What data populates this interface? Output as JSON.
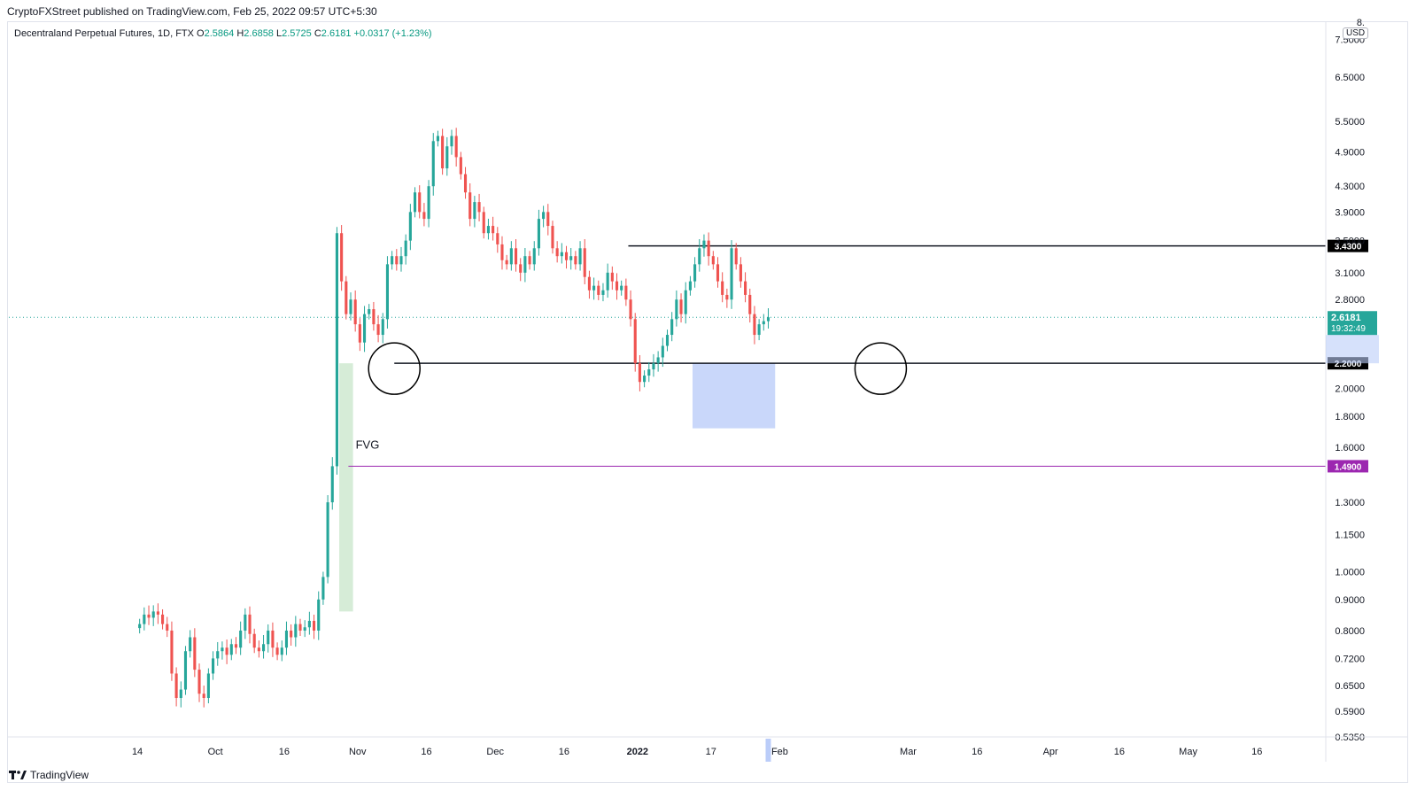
{
  "header": {
    "publisher_line": "CryptoFXStreet published on TradingView.com, Feb 25, 2022 09:57 UTC+5:30"
  },
  "legend": {
    "symbol": "Decentraland Perpetual Futures, 1D, FTX",
    "o_label": "O",
    "o_value": "2.5864",
    "h_label": "H",
    "h_value": "2.6858",
    "l_label": "L",
    "l_value": "2.5725",
    "c_label": "C",
    "c_value": "2.6181",
    "change": "+0.0317 (+1.23%)"
  },
  "currency": "USD",
  "footer": {
    "brand": "TradingView"
  },
  "colors": {
    "up": "#26a69a",
    "down": "#ef5350",
    "fvg": "#c8e6c9",
    "blue_zone": "#bbcdf9",
    "level_line": "#131722",
    "fvg_line": "#9c27b0",
    "price_label": "#26a69a"
  },
  "chart_data": {
    "type": "candlestick",
    "y_scale": "log",
    "ylim": [
      0.535,
      8.0
    ],
    "y_ticks": [
      "8.",
      "7.5000",
      "6.5000",
      "5.5000",
      "4.9000",
      "4.3000",
      "3.9000",
      "3.5000",
      "3.1000",
      "2.8000",
      "2.0000",
      "1.8000",
      "1.6000",
      "1.3000",
      "1.1500",
      "1.0000",
      "0.9000",
      "0.8000",
      "0.7200",
      "0.6500",
      "0.5900",
      "0.5350"
    ],
    "y_tick_values": [
      8.0,
      7.5,
      6.5,
      5.5,
      4.9,
      4.3,
      3.9,
      3.5,
      3.1,
      2.8,
      2.0,
      1.8,
      1.6,
      1.3,
      1.15,
      1.0,
      0.9,
      0.8,
      0.72,
      0.65,
      0.59,
      0.535
    ],
    "x_ticks": [
      {
        "label": "14",
        "date": "2021-09-14"
      },
      {
        "label": "Oct",
        "date": "2021-10-01"
      },
      {
        "label": "16",
        "date": "2021-10-16"
      },
      {
        "label": "Nov",
        "date": "2021-11-01"
      },
      {
        "label": "16",
        "date": "2021-11-16"
      },
      {
        "label": "Dec",
        "date": "2021-12-01"
      },
      {
        "label": "16",
        "date": "2021-12-16"
      },
      {
        "label": "2022",
        "date": "2022-01-01"
      },
      {
        "label": "17",
        "date": "2022-01-17"
      },
      {
        "label": "Feb",
        "date": "2022-02-01"
      },
      {
        "label": "Mar",
        "date": "2022-03-01"
      },
      {
        "label": "16",
        "date": "2022-03-16"
      },
      {
        "label": "Apr",
        "date": "2022-04-01"
      },
      {
        "label": "16",
        "date": "2022-04-16"
      },
      {
        "label": "May",
        "date": "2022-05-01"
      },
      {
        "label": "16",
        "date": "2022-05-16"
      }
    ],
    "x_range": [
      "2021-08-17",
      "2022-05-31"
    ],
    "first_date": "2021-09-14",
    "closes": [
      0.82,
      0.85,
      0.84,
      0.86,
      0.85,
      0.82,
      0.8,
      0.68,
      0.62,
      0.64,
      0.74,
      0.78,
      0.69,
      0.63,
      0.62,
      0.68,
      0.72,
      0.74,
      0.75,
      0.73,
      0.76,
      0.75,
      0.8,
      0.85,
      0.79,
      0.75,
      0.74,
      0.76,
      0.8,
      0.75,
      0.73,
      0.75,
      0.8,
      0.78,
      0.82,
      0.8,
      0.81,
      0.83,
      0.8,
      0.9,
      0.98,
      1.3,
      1.49,
      3.6,
      3.0,
      2.65,
      2.8,
      2.55,
      2.38,
      2.65,
      2.7,
      2.55,
      2.45,
      2.6,
      3.2,
      3.3,
      3.2,
      3.3,
      3.5,
      3.9,
      4.2,
      3.9,
      3.8,
      4.3,
      5.1,
      5.2,
      4.6,
      5.0,
      5.2,
      4.8,
      4.5,
      4.2,
      3.8,
      4.05,
      3.9,
      3.6,
      3.7,
      3.6,
      3.45,
      3.25,
      3.2,
      3.4,
      3.2,
      3.1,
      3.3,
      3.2,
      3.4,
      3.8,
      3.9,
      3.7,
      3.4,
      3.3,
      3.35,
      3.25,
      3.3,
      3.2,
      3.4,
      3.05,
      2.9,
      2.95,
      2.85,
      2.9,
      3.1,
      3.0,
      2.9,
      2.95,
      2.8,
      2.6,
      2.2,
      2.05,
      2.1,
      2.15,
      2.2,
      2.25,
      2.35,
      2.45,
      2.6,
      2.8,
      2.65,
      2.9,
      3.0,
      3.2,
      3.4,
      3.5,
      3.3,
      3.2,
      3.0,
      2.85,
      2.8,
      3.4,
      3.2,
      3.0,
      2.85,
      2.65,
      2.45,
      2.55,
      2.58,
      2.618
    ],
    "key_levels": [
      {
        "label": "3.4300",
        "value": 3.43,
        "from": "2021-12-30"
      },
      {
        "label": "2.2000",
        "value": 2.2,
        "from": "2021-11-09"
      },
      {
        "label": "1.4900",
        "value": 1.49,
        "from": "2021-10-30"
      }
    ],
    "fvg_zone": {
      "label": "FVG",
      "from": "2021-10-28",
      "to": "2021-10-31",
      "low": 0.86,
      "high": 2.2
    },
    "blue_zone": {
      "from": "2022-01-13",
      "to": "2022-01-31",
      "low": 1.72,
      "high": 2.2
    },
    "circles": [
      {
        "date": "2021-11-09",
        "value": 2.2
      },
      {
        "date": "2022-02-23",
        "value": 2.2
      }
    ],
    "last_price": {
      "label": "2.6181",
      "value": 2.6181,
      "countdown": "19:32:49"
    }
  }
}
